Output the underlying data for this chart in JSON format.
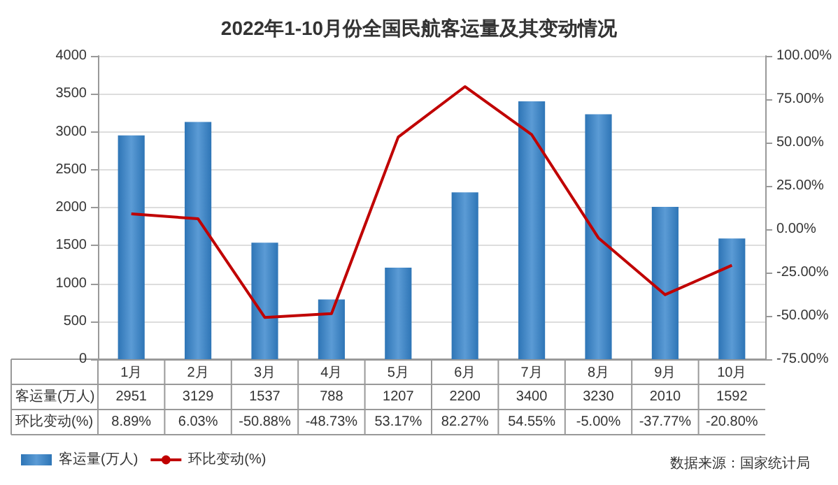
{
  "chart_data": {
    "type": "bar",
    "title": "2022年1-10月份全国民航客运量及其变动情况",
    "categories": [
      "1月",
      "2月",
      "3月",
      "4月",
      "5月",
      "6月",
      "7月",
      "8月",
      "9月",
      "10月"
    ],
    "series": [
      {
        "name": "客运量(万人)",
        "color": "#2e75b6",
        "values": [
          2951,
          3129,
          1537,
          788,
          1207,
          2200,
          3400,
          3230,
          2010,
          1592
        ],
        "value_labels": [
          "2951",
          "3129",
          "1537",
          "788",
          "1207",
          "2200",
          "3400",
          "3230",
          "2010",
          "1592"
        ]
      },
      {
        "name": "环比变动(%)",
        "type": "line",
        "axis": "y2",
        "color": "#c00000",
        "values": [
          8.89,
          6.03,
          -50.88,
          -48.73,
          53.17,
          82.27,
          54.55,
          -5.0,
          -37.77,
          -20.8
        ],
        "value_labels": [
          "8.89%",
          "6.03%",
          "-50.88%",
          "-48.73%",
          "53.17%",
          "82.27%",
          "54.55%",
          "-5.00%",
          "-37.77%",
          "-20.80%"
        ]
      }
    ],
    "ylim": [
      0,
      4000
    ],
    "yticks": [
      0,
      500,
      1000,
      1500,
      2000,
      2500,
      3000,
      3500,
      4000
    ],
    "y2lim": [
      -75,
      100
    ],
    "y2ticks": [
      {
        "value": -75,
        "label": "-75.00%"
      },
      {
        "value": -50,
        "label": "-50.00%"
      },
      {
        "value": -25,
        "label": "-25.00%"
      },
      {
        "value": 0,
        "label": "0.00%"
      },
      {
        "value": 25,
        "label": "25.00%"
      },
      {
        "value": 50,
        "label": "50.00%"
      },
      {
        "value": 75,
        "label": "75.00%"
      },
      {
        "value": 100,
        "label": "100.00%"
      }
    ],
    "grid": "y",
    "legend": "bottom left",
    "marker": "none",
    "annotations": [
      "数据来源：国家统计局"
    ]
  }
}
